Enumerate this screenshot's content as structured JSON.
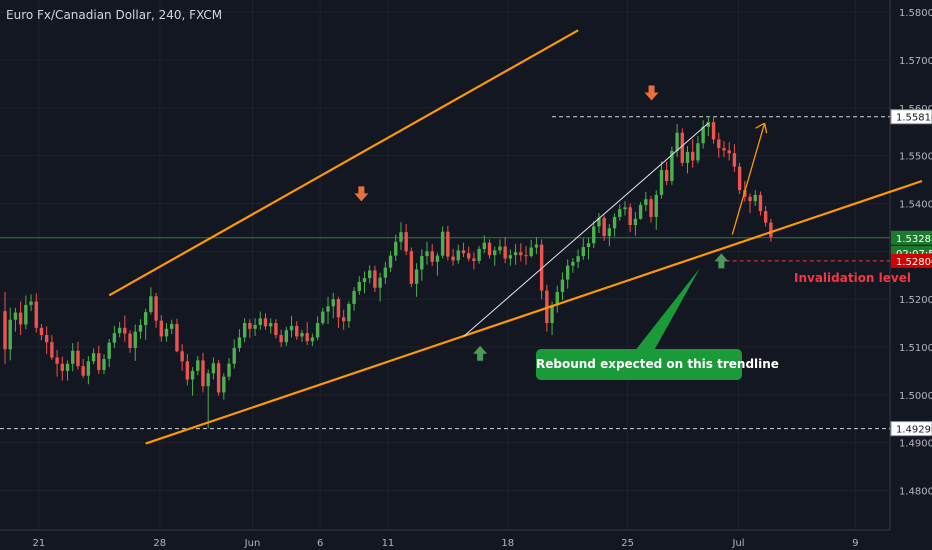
{
  "chart_data": {
    "type": "candlestick",
    "title": "Euro Fx/Canadian Dollar, 240, FXCM",
    "x_ticks": [
      "21",
      "28",
      "Jun",
      "6",
      "11",
      "18",
      "25",
      "Jul",
      "9"
    ],
    "y_ticks": [
      "1.58000",
      "1.57000",
      "1.56000",
      "1.55000",
      "1.54000",
      "1.53000",
      "1.52000",
      "1.51000",
      "1.50000",
      "1.49000",
      "1.48000"
    ],
    "ylim": [
      1.4755,
      1.5815
    ],
    "price_labels": {
      "high_level": "1.55814",
      "current_price": "1.53283",
      "countdown": "02:07:58",
      "invalidation_price": "1.52800",
      "low_level": "1.49293"
    },
    "annotations": {
      "invalidation_text": "Invalidation level",
      "callout_text": "Rebound expected on this trendline"
    },
    "colors": {
      "background": "#131722",
      "up": "#26a69a",
      "up_body": "#4caf50",
      "down": "#ef5350",
      "channel": "#ff9800",
      "callout": "#1b9a3a",
      "arrow_down": "#e8703a",
      "arrow_up": "#4c9a5a",
      "current_line": "#2e7d32",
      "invalidation": "#f23645"
    },
    "channel": {
      "upper": [
        [
          -26.0,
          1.5208
        ],
        [
          64.0,
          1.5762
        ]
      ],
      "lower": [
        [
          -19.0,
          1.4898
        ],
        [
          72.0,
          1.5447
        ]
      ]
    },
    "inner_trendline": [
      [
        16.0,
        1.5122
      ],
      [
        40.0,
        1.5568
      ]
    ],
    "dashed_levels": [
      1.55814,
      1.49293
    ],
    "current_price": 1.53283,
    "invalidation_level": 1.528,
    "projection_arrow": [
      [
        47.6,
        1.5335
      ],
      [
        50.8,
        1.5568
      ]
    ],
    "down_arrows": [
      [
        8.7,
        1.5417
      ],
      [
        30.4,
        1.5628
      ]
    ],
    "up_arrows": [
      [
        16.9,
        1.5088
      ],
      [
        46.4,
        1.5281
      ]
    ],
    "ohlc": [
      [
        1.5175,
        1.5215,
        1.5065,
        1.5095
      ],
      [
        1.5095,
        1.5182,
        1.5072,
        1.5157
      ],
      [
        1.5157,
        1.5182,
        1.5132,
        1.5172
      ],
      [
        1.5172,
        1.5195,
        1.5125,
        1.5147
      ],
      [
        1.5147,
        1.5208,
        1.5137,
        1.5188
      ],
      [
        1.5188,
        1.521,
        1.5175,
        1.5195
      ],
      [
        1.5195,
        1.5212,
        1.513,
        1.514
      ],
      [
        1.514,
        1.5148,
        1.5114,
        1.5125
      ],
      [
        1.5125,
        1.5143,
        1.5085,
        1.511
      ],
      [
        1.511,
        1.5125,
        1.5073,
        1.5078
      ],
      [
        1.5078,
        1.5094,
        1.5038,
        1.5065
      ],
      [
        1.5065,
        1.508,
        1.503,
        1.505
      ],
      [
        1.505,
        1.5072,
        1.503,
        1.5065
      ],
      [
        1.5065,
        1.5108,
        1.5049,
        1.5092
      ],
      [
        1.5092,
        1.5111,
        1.5053,
        1.506
      ],
      [
        1.506,
        1.5075,
        1.5035,
        1.504
      ],
      [
        1.504,
        1.5081,
        1.5022,
        1.507
      ],
      [
        1.507,
        1.5097,
        1.5064,
        1.5087
      ],
      [
        1.5087,
        1.5103,
        1.5044,
        1.5052
      ],
      [
        1.5052,
        1.5085,
        1.5043,
        1.5075
      ],
      [
        1.5075,
        1.5117,
        1.5058,
        1.5109
      ],
      [
        1.5109,
        1.5144,
        1.5098,
        1.5129
      ],
      [
        1.5129,
        1.5152,
        1.512,
        1.514
      ],
      [
        1.514,
        1.5166,
        1.5111,
        1.5128
      ],
      [
        1.5128,
        1.5135,
        1.5088,
        1.5098
      ],
      [
        1.5098,
        1.5147,
        1.5071,
        1.5132
      ],
      [
        1.5132,
        1.5158,
        1.5117,
        1.5146
      ],
      [
        1.5146,
        1.518,
        1.5115,
        1.5173
      ],
      [
        1.5173,
        1.5225,
        1.5168,
        1.5206
      ],
      [
        1.5206,
        1.5213,
        1.514,
        1.5155
      ],
      [
        1.5155,
        1.5167,
        1.5111,
        1.5122
      ],
      [
        1.5122,
        1.515,
        1.5111,
        1.5138
      ],
      [
        1.5138,
        1.5157,
        1.5127,
        1.5148
      ],
      [
        1.5148,
        1.5159,
        1.5089,
        1.5091
      ],
      [
        1.5091,
        1.5106,
        1.505,
        1.507
      ],
      [
        1.507,
        1.5085,
        1.502,
        1.5032
      ],
      [
        1.5032,
        1.5058,
        1.4998,
        1.505
      ],
      [
        1.505,
        1.5081,
        1.5041,
        1.5072
      ],
      [
        1.5072,
        1.5088,
        1.5005,
        1.5018
      ],
      [
        1.5018,
        1.5053,
        1.493,
        1.5045
      ],
      [
        1.5045,
        1.5078,
        1.5032,
        1.5066
      ],
      [
        1.5066,
        1.5073,
        1.4998,
        1.5005
      ],
      [
        1.5005,
        1.5045,
        1.499,
        1.5038
      ],
      [
        1.5038,
        1.5077,
        1.503,
        1.5065
      ],
      [
        1.5065,
        1.5116,
        1.5055,
        1.5098
      ],
      [
        1.5098,
        1.5137,
        1.509,
        1.512
      ],
      [
        1.512,
        1.516,
        1.511,
        1.515
      ],
      [
        1.515,
        1.5158,
        1.5119,
        1.5138
      ],
      [
        1.5138,
        1.516,
        1.5123,
        1.5146
      ],
      [
        1.5146,
        1.5174,
        1.5136,
        1.516
      ],
      [
        1.516,
        1.517,
        1.5136,
        1.5143
      ],
      [
        1.5143,
        1.516,
        1.5128,
        1.515
      ],
      [
        1.515,
        1.5158,
        1.5118,
        1.5125
      ],
      [
        1.5125,
        1.5136,
        1.51,
        1.511
      ],
      [
        1.511,
        1.5142,
        1.5102,
        1.5135
      ],
      [
        1.5135,
        1.5165,
        1.512,
        1.5144
      ],
      [
        1.5144,
        1.5154,
        1.5115,
        1.5122
      ],
      [
        1.5122,
        1.5136,
        1.5111,
        1.5129
      ],
      [
        1.5129,
        1.5152,
        1.5104,
        1.5112
      ],
      [
        1.5112,
        1.5128,
        1.5102,
        1.512
      ],
      [
        1.512,
        1.5164,
        1.5114,
        1.515
      ],
      [
        1.515,
        1.5182,
        1.5146,
        1.5174
      ],
      [
        1.5174,
        1.5205,
        1.5148,
        1.5185
      ],
      [
        1.5185,
        1.5213,
        1.516,
        1.52
      ],
      [
        1.52,
        1.5205,
        1.514,
        1.5162
      ],
      [
        1.5162,
        1.5178,
        1.5136,
        1.5154
      ],
      [
        1.5154,
        1.5195,
        1.514,
        1.519
      ],
      [
        1.519,
        1.5225,
        1.5176,
        1.5217
      ],
      [
        1.5217,
        1.5248,
        1.5209,
        1.5236
      ],
      [
        1.5236,
        1.5258,
        1.5212,
        1.5244
      ],
      [
        1.5244,
        1.5271,
        1.5233,
        1.526
      ],
      [
        1.526,
        1.527,
        1.5215,
        1.5224
      ],
      [
        1.5224,
        1.5255,
        1.5195,
        1.5245
      ],
      [
        1.5245,
        1.5278,
        1.5232,
        1.5266
      ],
      [
        1.5266,
        1.53,
        1.5257,
        1.5291
      ],
      [
        1.5291,
        1.5335,
        1.528,
        1.532
      ],
      [
        1.532,
        1.5361,
        1.5303,
        1.534
      ],
      [
        1.534,
        1.5357,
        1.5292,
        1.53
      ],
      [
        1.53,
        1.5308,
        1.5225,
        1.5232
      ],
      [
        1.5232,
        1.5275,
        1.5205,
        1.5262
      ],
      [
        1.5262,
        1.5304,
        1.5238,
        1.529
      ],
      [
        1.529,
        1.532,
        1.5272,
        1.53
      ],
      [
        1.53,
        1.5315,
        1.5269,
        1.5278
      ],
      [
        1.5278,
        1.5297,
        1.5249,
        1.5291
      ],
      [
        1.5291,
        1.5352,
        1.5285,
        1.5341
      ],
      [
        1.5341,
        1.5353,
        1.5281,
        1.5289
      ],
      [
        1.5289,
        1.5305,
        1.527,
        1.5281
      ],
      [
        1.5281,
        1.5314,
        1.5274,
        1.5302
      ],
      [
        1.5302,
        1.5318,
        1.5288,
        1.5296
      ],
      [
        1.5296,
        1.531,
        1.5279,
        1.5285
      ],
      [
        1.5285,
        1.5298,
        1.5262,
        1.528
      ],
      [
        1.528,
        1.5311,
        1.5274,
        1.5305
      ],
      [
        1.5305,
        1.5333,
        1.5296,
        1.5318
      ],
      [
        1.5318,
        1.5325,
        1.5285,
        1.5292
      ],
      [
        1.5292,
        1.531,
        1.527,
        1.5302
      ],
      [
        1.5302,
        1.5325,
        1.5294,
        1.531
      ],
      [
        1.531,
        1.533,
        1.5275,
        1.5285
      ],
      [
        1.5285,
        1.5304,
        1.527,
        1.5292
      ],
      [
        1.5292,
        1.5315,
        1.5272,
        1.5298
      ],
      [
        1.5298,
        1.5317,
        1.5279,
        1.5292
      ],
      [
        1.5292,
        1.5311,
        1.5272,
        1.529
      ],
      [
        1.529,
        1.5324,
        1.5287,
        1.5308
      ],
      [
        1.5308,
        1.533,
        1.5294,
        1.5314
      ],
      [
        1.5314,
        1.5325,
        1.52,
        1.5218
      ],
      [
        1.5218,
        1.523,
        1.5132,
        1.515
      ],
      [
        1.515,
        1.5195,
        1.5125,
        1.5188
      ],
      [
        1.5188,
        1.5228,
        1.5172,
        1.5215
      ],
      [
        1.5215,
        1.5256,
        1.5198,
        1.5241
      ],
      [
        1.5241,
        1.5283,
        1.5222,
        1.527
      ],
      [
        1.527,
        1.5286,
        1.5255,
        1.5278
      ],
      [
        1.5278,
        1.5304,
        1.5265,
        1.529
      ],
      [
        1.529,
        1.5327,
        1.5282,
        1.5309
      ],
      [
        1.5309,
        1.5328,
        1.5283,
        1.5317
      ],
      [
        1.5317,
        1.5363,
        1.5307,
        1.5352
      ],
      [
        1.5352,
        1.538,
        1.5338,
        1.537
      ],
      [
        1.537,
        1.5375,
        1.5322,
        1.5332
      ],
      [
        1.5332,
        1.5357,
        1.5311,
        1.5348
      ],
      [
        1.5348,
        1.5379,
        1.5331,
        1.5372
      ],
      [
        1.5372,
        1.5398,
        1.5364,
        1.5388
      ],
      [
        1.5388,
        1.5405,
        1.5375,
        1.5392
      ],
      [
        1.5392,
        1.54,
        1.534,
        1.5355
      ],
      [
        1.5355,
        1.5382,
        1.5333,
        1.5368
      ],
      [
        1.5368,
        1.5403,
        1.5366,
        1.5397
      ],
      [
        1.5397,
        1.5424,
        1.5384,
        1.5409
      ],
      [
        1.5409,
        1.5416,
        1.536,
        1.5372
      ],
      [
        1.5372,
        1.5428,
        1.5345,
        1.5418
      ],
      [
        1.5418,
        1.5488,
        1.541,
        1.547
      ],
      [
        1.547,
        1.5488,
        1.5438,
        1.5447
      ],
      [
        1.5447,
        1.5519,
        1.5439,
        1.551
      ],
      [
        1.551,
        1.5566,
        1.5497,
        1.5548
      ],
      [
        1.5548,
        1.5557,
        1.5478,
        1.5485
      ],
      [
        1.5485,
        1.552,
        1.5463,
        1.5508
      ],
      [
        1.5508,
        1.5534,
        1.5475,
        1.549
      ],
      [
        1.549,
        1.5541,
        1.5484,
        1.5526
      ],
      [
        1.5526,
        1.5574,
        1.5515,
        1.556
      ],
      [
        1.556,
        1.5583,
        1.5541,
        1.557
      ],
      [
        1.557,
        1.5582,
        1.5525,
        1.5534
      ],
      [
        1.5534,
        1.5548,
        1.5496,
        1.5516
      ],
      [
        1.5516,
        1.553,
        1.5497,
        1.5511
      ],
      [
        1.5511,
        1.5528,
        1.549,
        1.5505
      ],
      [
        1.5505,
        1.5524,
        1.5466,
        1.5477
      ],
      [
        1.5477,
        1.5485,
        1.542,
        1.5428
      ],
      [
        1.5428,
        1.5447,
        1.5404,
        1.5414
      ],
      [
        1.5414,
        1.5421,
        1.538,
        1.5405
      ],
      [
        1.5405,
        1.5428,
        1.5395,
        1.5418
      ],
      [
        1.5418,
        1.5425,
        1.5375,
        1.5384
      ],
      [
        1.5384,
        1.5395,
        1.5352,
        1.536
      ],
      [
        1.536,
        1.5368,
        1.532,
        1.533
      ]
    ]
  }
}
